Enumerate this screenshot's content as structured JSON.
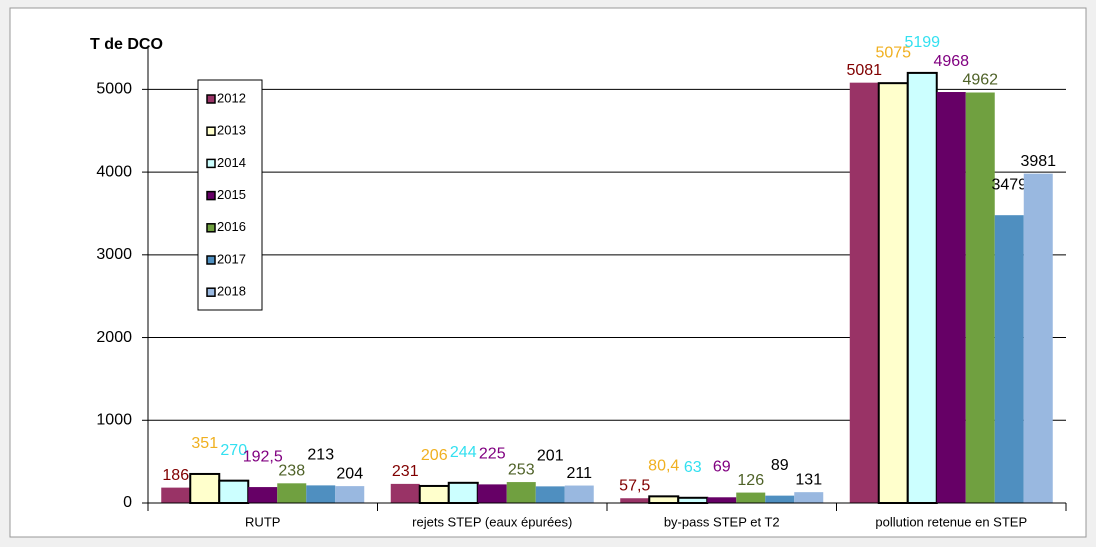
{
  "chart_data": {
    "type": "bar",
    "ylabel": "T de DCO",
    "categories": [
      "RUTP",
      "rejets STEP (eaux épurées)",
      "by-pass STEP et T2",
      "pollution retenue en STEP"
    ],
    "series": [
      {
        "name": "2012",
        "color": "#993366",
        "label_color": "#800000",
        "values": [
          186,
          231,
          57.5,
          5081
        ],
        "value_labels": [
          "186",
          "231",
          "57,5",
          "5081"
        ]
      },
      {
        "name": "2013",
        "color": "#ffffcc",
        "label_color": "#f0b020",
        "values": [
          351,
          206,
          80.4,
          5075
        ],
        "value_labels": [
          "351",
          "206",
          "80,4",
          "5075"
        ]
      },
      {
        "name": "2014",
        "color": "#ccffff",
        "label_color": "#33e0f0",
        "values": [
          270,
          244,
          63,
          5199
        ]
      },
      {
        "name": "2015",
        "color": "#660066",
        "label_color": "#800080",
        "values": [
          192.5,
          225,
          69,
          4968
        ],
        "value_labels": [
          "192,5",
          "225",
          "69",
          "4968"
        ]
      },
      {
        "name": "2016",
        "color": "#70a040",
        "label_color": "#4f6228",
        "values": [
          238,
          253,
          126,
          4962
        ]
      },
      {
        "name": "2017",
        "color": "#4f8fc0",
        "label_color": "#000000",
        "values": [
          213,
          201,
          89,
          3479
        ]
      },
      {
        "name": "2018",
        "color": "#99b8e0",
        "label_color": "#000000",
        "values": [
          204,
          211,
          131,
          3981
        ]
      }
    ],
    "ylim": [
      0,
      5500
    ],
    "yticks": [
      0,
      1000,
      2000,
      3000,
      4000,
      5000
    ],
    "grid": true,
    "legend": "upper left"
  }
}
